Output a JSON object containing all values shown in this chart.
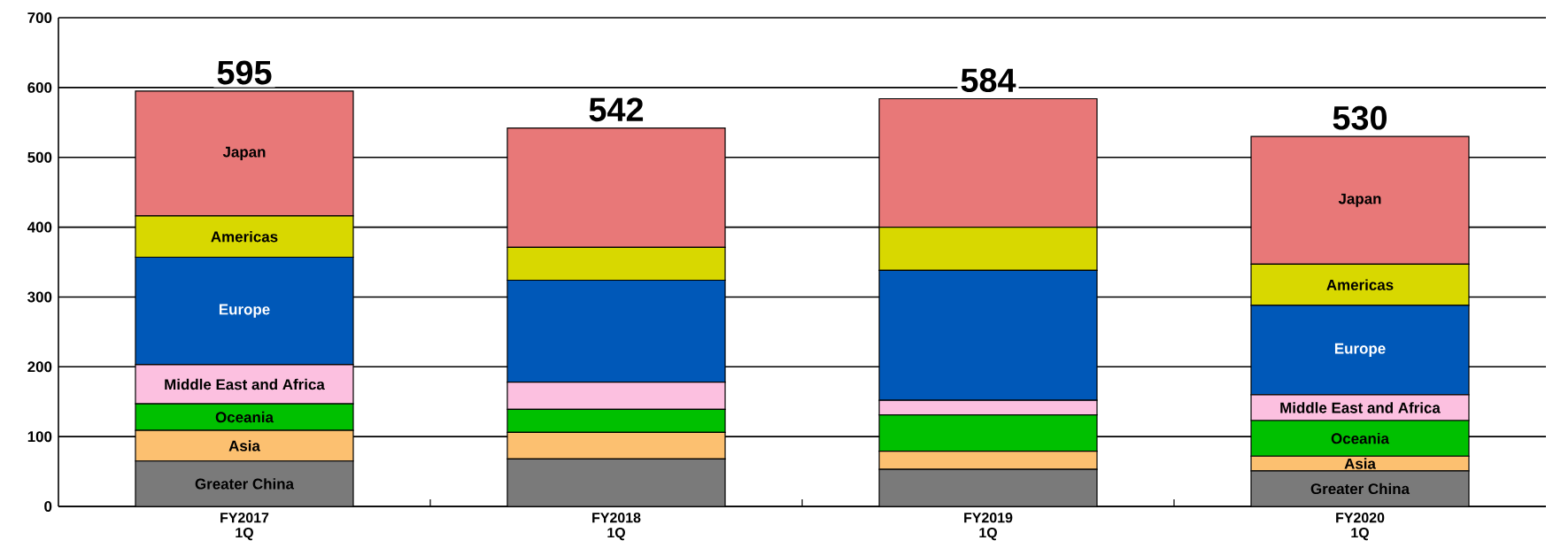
{
  "chart_data": {
    "type": "bar",
    "stacked": true,
    "categories": [
      "FY2017 1Q",
      "FY2018 1Q",
      "FY2019 1Q",
      "FY2020 1Q"
    ],
    "series": [
      {
        "name": "Greater China",
        "color": "#7a7a7a",
        "values": [
          65,
          68,
          53,
          51
        ]
      },
      {
        "name": "Asia",
        "color": "#fcc070",
        "values": [
          44,
          38,
          26,
          21
        ]
      },
      {
        "name": "Oceania",
        "color": "#00c000",
        "values": [
          38,
          33,
          52,
          51
        ]
      },
      {
        "name": "Middle East and Africa",
        "color": "#fcc0e0",
        "values": [
          56,
          39,
          21,
          37
        ]
      },
      {
        "name": "Europe",
        "color": "#0058b8",
        "values": [
          154,
          146,
          186,
          128
        ]
      },
      {
        "name": "Americas",
        "color": "#d8d800",
        "values": [
          59,
          47,
          62,
          59
        ]
      },
      {
        "name": "Japan",
        "color": "#e87878",
        "values": [
          179,
          171,
          184,
          183
        ]
      }
    ],
    "totals": [
      "595",
      "542",
      "584",
      "530"
    ],
    "ylim": [
      0,
      700
    ],
    "yticks": [
      0,
      100,
      200,
      300,
      400,
      500,
      600,
      700
    ],
    "grid": "y"
  }
}
